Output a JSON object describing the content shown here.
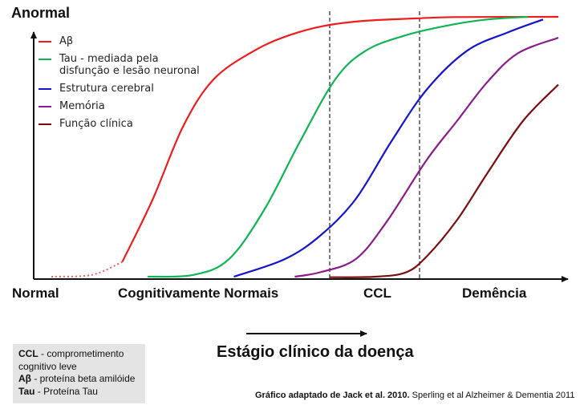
{
  "chart_data": {
    "type": "line",
    "ylabel": "Anormal",
    "x_stage_labels": [
      "Normal",
      "Cognitivamente Normais",
      "CCL",
      "Demência"
    ],
    "xlabel": "Estágio clínico da doença",
    "vertical_markers": [
      "CCL-start",
      "Demência-start"
    ],
    "series": [
      {
        "name": "Aβ",
        "color": "#ee1c1c",
        "points": [
          [
            0.0,
            0.003
          ],
          [
            0.08,
            0.01
          ],
          [
            0.14,
            0.06
          ],
          [
            0.2,
            0.3
          ],
          [
            0.26,
            0.58
          ],
          [
            0.32,
            0.76
          ],
          [
            0.4,
            0.87
          ],
          [
            0.47,
            0.93
          ],
          [
            0.54,
            0.966
          ],
          [
            0.62,
            0.985
          ],
          [
            0.72,
            0.994
          ],
          [
            0.8,
            0.999
          ],
          [
            1.0,
            1.0
          ]
        ],
        "dotted_until": 0.14
      },
      {
        "name": "Tau - mediada pela\ndisfunção e lesão neuronal",
        "color": "#10b452",
        "points": [
          [
            0.19,
            0.003
          ],
          [
            0.28,
            0.01
          ],
          [
            0.35,
            0.07
          ],
          [
            0.42,
            0.26
          ],
          [
            0.49,
            0.52
          ],
          [
            0.56,
            0.76
          ],
          [
            0.62,
            0.87
          ],
          [
            0.7,
            0.93
          ],
          [
            0.79,
            0.97
          ],
          [
            0.86,
            0.99
          ],
          [
            0.94,
            1.0
          ]
        ]
      },
      {
        "name": "Estrutura cerebral",
        "color": "#1414cc",
        "points": [
          [
            0.36,
            0.003
          ],
          [
            0.46,
            0.07
          ],
          [
            0.53,
            0.16
          ],
          [
            0.6,
            0.3
          ],
          [
            0.67,
            0.52
          ],
          [
            0.74,
            0.72
          ],
          [
            0.82,
            0.87
          ],
          [
            0.9,
            0.94
          ],
          [
            0.97,
            0.99
          ]
        ]
      },
      {
        "name": "Memória",
        "color": "#8b1a8b",
        "points": [
          [
            0.48,
            0.003
          ],
          [
            0.53,
            0.02
          ],
          [
            0.6,
            0.07
          ],
          [
            0.66,
            0.21
          ],
          [
            0.74,
            0.45
          ],
          [
            0.8,
            0.6
          ],
          [
            0.86,
            0.75
          ],
          [
            0.92,
            0.86
          ],
          [
            1.0,
            0.92
          ]
        ]
      },
      {
        "name": "Função clínica",
        "color": "#7a0d0d",
        "points": [
          [
            0.55,
            0.001
          ],
          [
            0.64,
            0.003
          ],
          [
            0.7,
            0.02
          ],
          [
            0.74,
            0.08
          ],
          [
            0.8,
            0.22
          ],
          [
            0.86,
            0.4
          ],
          [
            0.93,
            0.6
          ],
          [
            1.0,
            0.74
          ]
        ]
      }
    ]
  },
  "notes": [
    {
      "key": "CCL",
      "text": " - comprometimento cognitivo leve"
    },
    {
      "key": "Aβ",
      "text": " - proteína beta amilóide"
    },
    {
      "key": "Tau",
      "text": " - Proteína Tau"
    }
  ],
  "source": {
    "bold": "Gráfico adaptado de Jack et al. 2010.",
    "rest": " Sperling et al Alzheimer & Dementia 2011"
  }
}
